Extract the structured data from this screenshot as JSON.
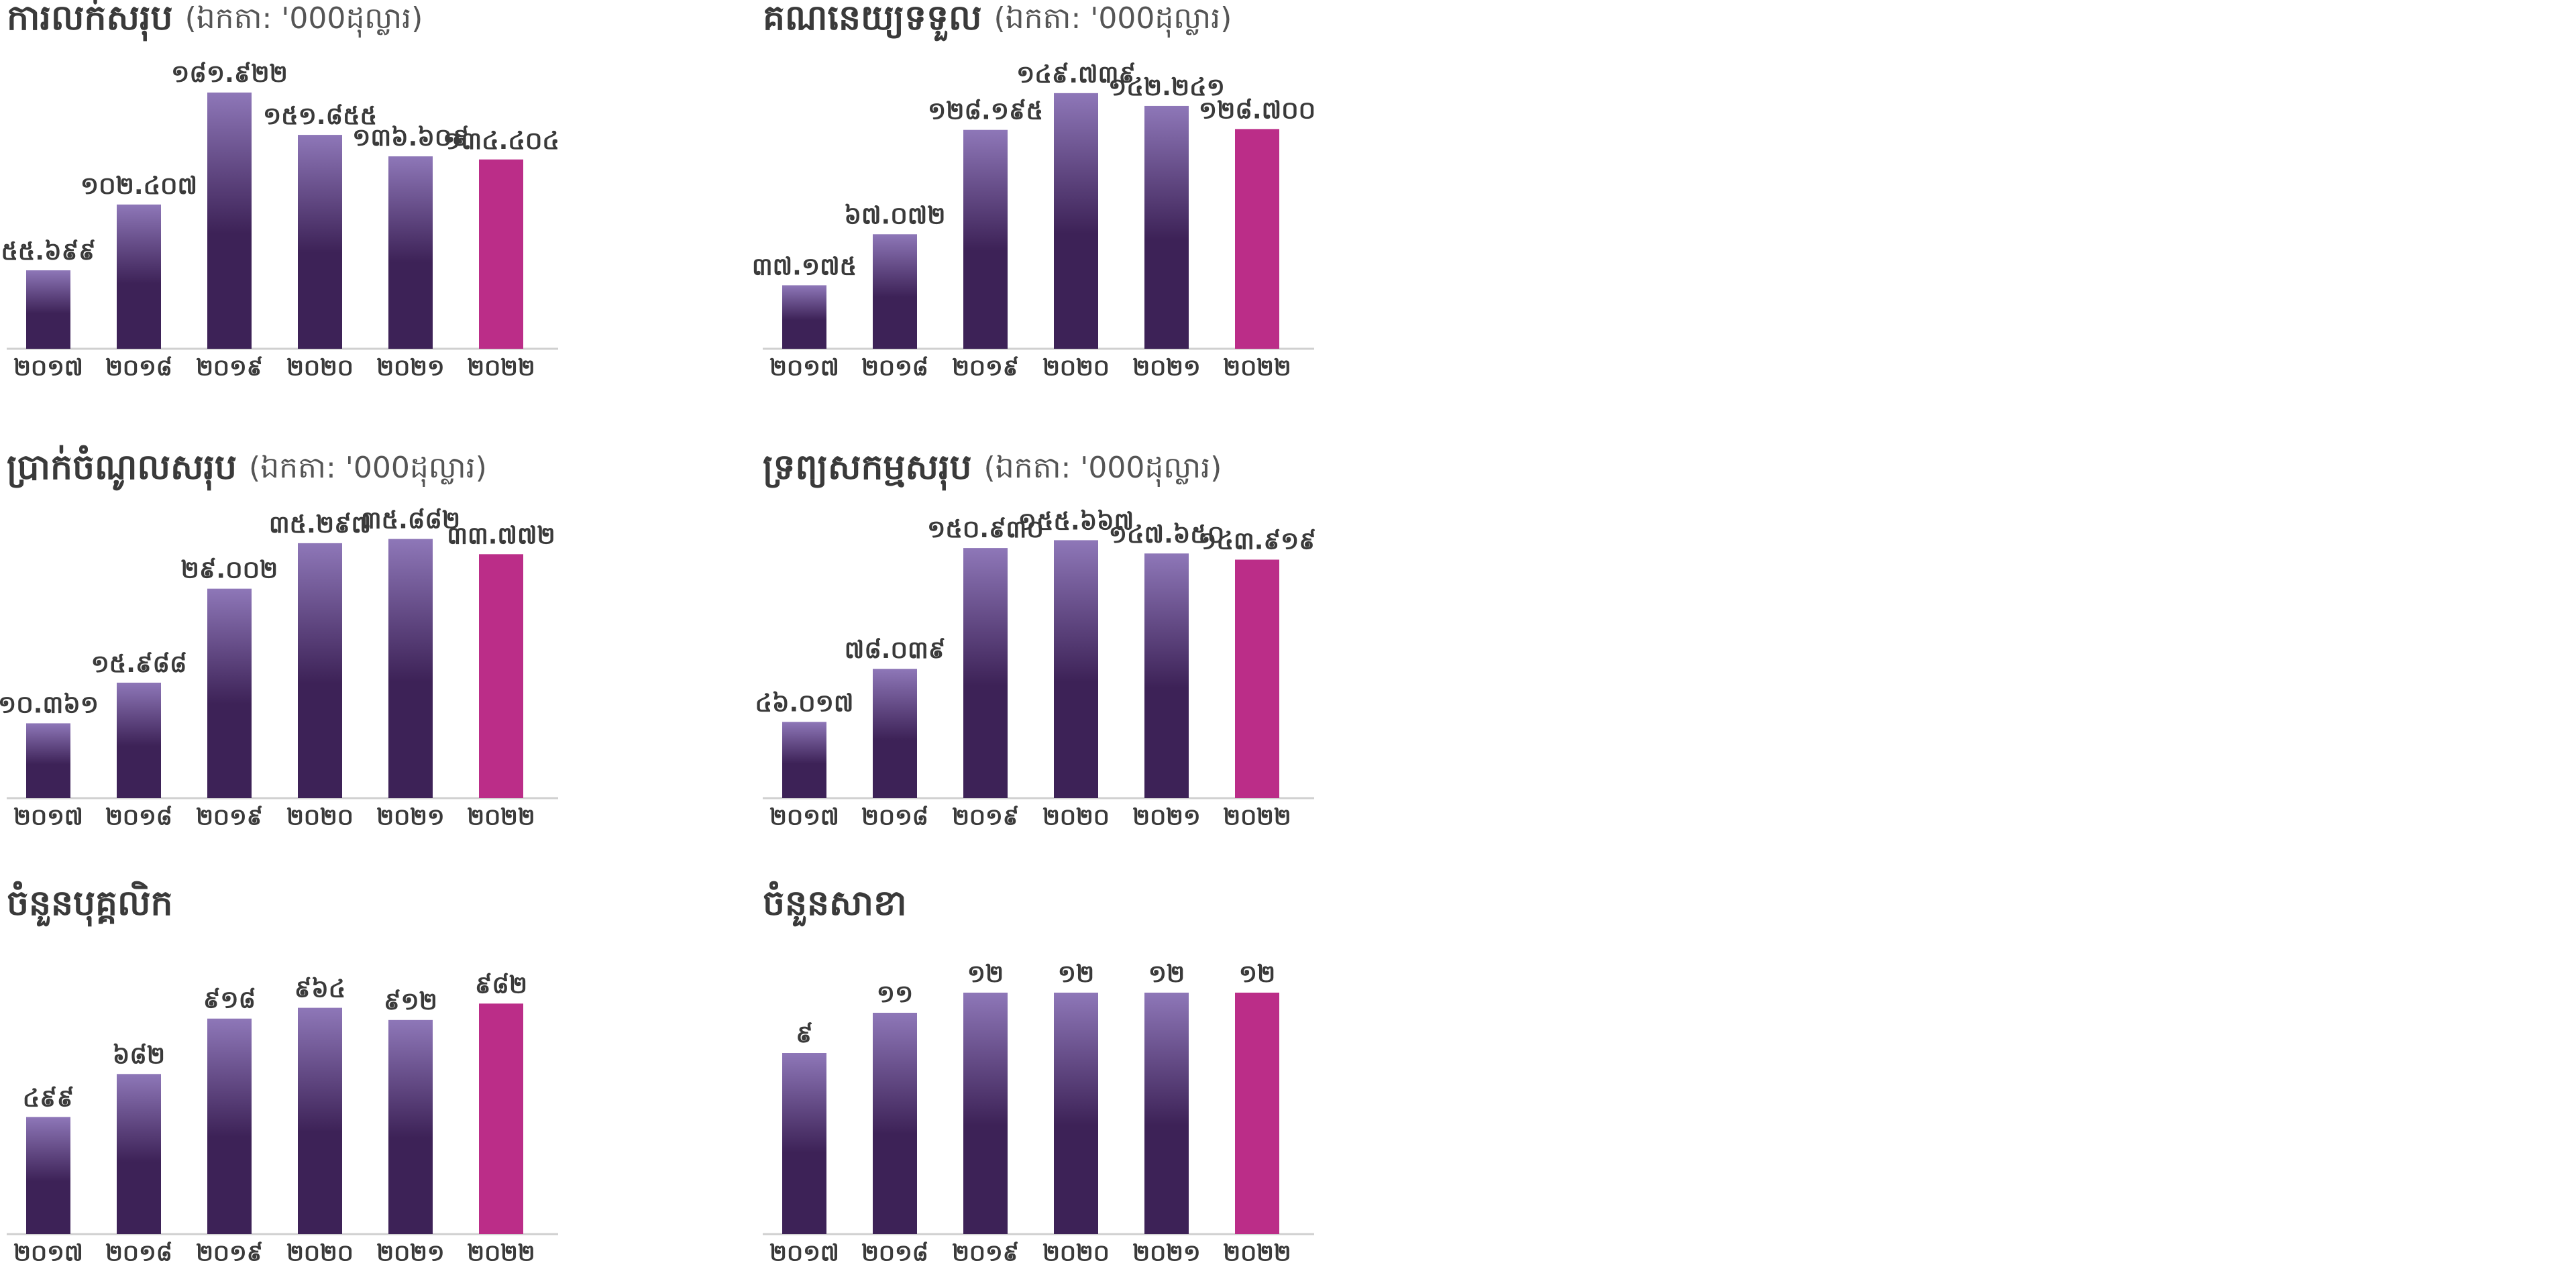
{
  "chart_data": [
    {
      "type": "bar",
      "title": "ការលក់សរុប",
      "subtitle": "(ឯកតា: '000ដុល្លារ)",
      "categories": [
        "២០១៧",
        "២០១៨",
        "២០១៩",
        "២០២០",
        "២០២១",
        "២០២២"
      ],
      "values": [
        55699,
        102407,
        181922,
        151855,
        136609,
        134404
      ],
      "value_labels": [
        "៥៥.៦៩៩",
        "១០២.៤០៧",
        "១៨១.៩២២",
        "១៥១.៨៥៥",
        "១៣៦.៦០៩",
        "១៣៤.៤០៤"
      ],
      "color": "#3d2257",
      "gradient_top": "#8e77b8",
      "colors": [
        "#3d2257",
        "#3d2257",
        "#3d2257",
        "#3d2257",
        "#3d2257",
        "#bb2d88"
      ],
      "ylim": [
        0,
        200000
      ]
    },
    {
      "type": "bar",
      "title": "គណនេយ្យទទួល",
      "subtitle": "(ឯកតា: '000ដុល្លារ)",
      "categories": [
        "២០១៧",
        "២០១៨",
        "២០១៩",
        "២០២០",
        "២០២១",
        "២០២២"
      ],
      "values": [
        37175,
        67072,
        128195,
        149739,
        142241,
        128700
      ],
      "value_labels": [
        "៣៧.១៧៥",
        "៦៧.០៧២",
        "១២៨.១៩៥",
        "១៤៩.៧៣៩",
        "១៤២.២៤១",
        "១២៨.៧០០"
      ],
      "color": "#3d2257",
      "gradient_top": "#8e77b8",
      "colors": [
        "#3d2257",
        "#3d2257",
        "#3d2257",
        "#3d2257",
        "#3d2257",
        "#bb2d88"
      ],
      "ylim": [
        0,
        165000
      ]
    },
    {
      "type": "bar",
      "title": "ប្រាក់ចំណូលសរុប",
      "subtitle": "(ឯកតា: '000ដុល្លារ)",
      "categories": [
        "២០១៧",
        "២០១៨",
        "២០១៩",
        "២០២០",
        "២០២១",
        "២០២២"
      ],
      "values": [
        10361,
        15988,
        29002,
        35297,
        35882,
        33772
      ],
      "value_labels": [
        "១០.៣៦១",
        "១៥.៩៨៨",
        "២៩.០០២",
        "៣៥.២៩៧",
        "៣៥.៨៨២",
        "៣៣.៧៧២"
      ],
      "color": "#3d2257",
      "gradient_top": "#8e77b8",
      "colors": [
        "#3d2257",
        "#3d2257",
        "#3d2257",
        "#3d2257",
        "#3d2257",
        "#bb2d88"
      ],
      "ylim": [
        0,
        39000
      ]
    },
    {
      "type": "bar",
      "title": "ទ្រព្យសកម្មសរុប",
      "subtitle": "(ឯកតា: '000ដុល្លារ)",
      "categories": [
        "២០១៧",
        "២០១៨",
        "២០១៩",
        "២០២០",
        "២០២១",
        "២០២២"
      ],
      "values": [
        46017,
        78039,
        150930,
        155667,
        147650,
        143919
      ],
      "value_labels": [
        "៤៦.០១៧",
        "៧៨.០៣៩",
        "១៥០.៩៣០",
        "១៥៥.៦៦៧",
        "១៤៧.៦៥០",
        "១៤៣.៩១៩"
      ],
      "color": "#3d2257",
      "gradient_top": "#8e77b8",
      "colors": [
        "#3d2257",
        "#3d2257",
        "#3d2257",
        "#3d2257",
        "#3d2257",
        "#bb2d88"
      ],
      "ylim": [
        0,
        170000
      ]
    },
    {
      "type": "bar",
      "title": "ចំនួនបុគ្គលិក",
      "categories": [
        "២០១៧",
        "២០១៨",
        "២០១៩",
        "២០២០",
        "២០២១",
        "២០២២"
      ],
      "values": [
        499,
        682,
        918,
        964,
        912,
        982
      ],
      "value_labels": [
        "៤៩៩",
        "៦៨២",
        "៩១៨",
        "៩៦៤",
        "៩១២",
        "៩៨២"
      ],
      "color": "#3d2257",
      "gradient_top": "#8e77b8",
      "colors": [
        "#3d2257",
        "#3d2257",
        "#3d2257",
        "#3d2257",
        "#3d2257",
        "#bb2d88"
      ],
      "ylim": [
        0,
        1200
      ]
    },
    {
      "type": "bar",
      "title": "ចំនួនសាខា",
      "categories": [
        "២០១៧",
        "២០១៨",
        "២០១៩",
        "២០២០",
        "២០២១",
        "២០២២"
      ],
      "values": [
        9,
        11,
        12,
        12,
        12,
        12
      ],
      "value_labels": [
        "៩",
        "១១",
        "១២",
        "១២",
        "១២",
        "១២"
      ],
      "color": "#3d2257",
      "gradient_top": "#8e77b8",
      "colors": [
        "#3d2257",
        "#3d2257",
        "#3d2257",
        "#3d2257",
        "#3d2257",
        "#bb2d88"
      ],
      "ylim": [
        0,
        14
      ]
    }
  ]
}
